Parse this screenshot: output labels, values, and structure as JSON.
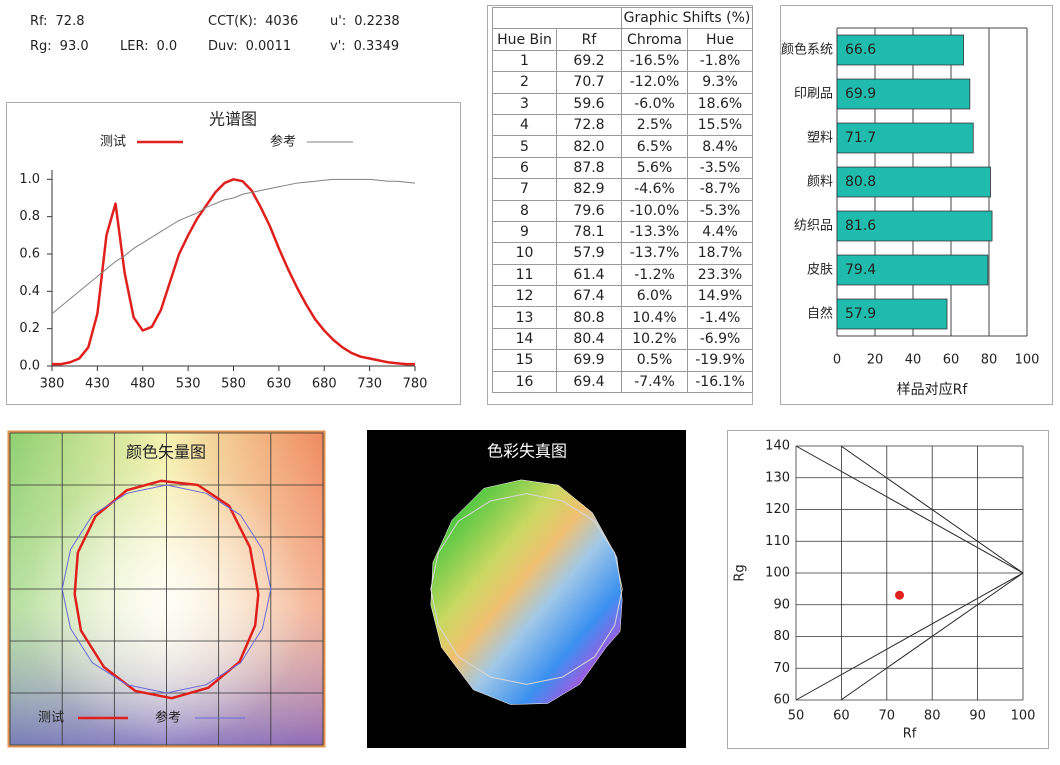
{
  "metrics": [
    {
      "label": "Rf:",
      "value": "72.8"
    },
    {
      "label": "Rg:",
      "value": "93.0"
    },
    {
      "label": "LER:",
      "value": "0.0"
    },
    {
      "label": "CCT(K):",
      "value": "4036"
    },
    {
      "label": "Duv:",
      "value": "0.0011"
    },
    {
      "label": "u':",
      "value": "0.2238"
    },
    {
      "label": "v':",
      "value": "0.3349"
    }
  ],
  "table": {
    "group_header": "Graphic Shifts (%)",
    "columns": [
      "Hue Bin",
      "Rf",
      "Chroma",
      "Hue"
    ],
    "rows": [
      [
        "1",
        "69.2",
        "-16.5%",
        "-1.8%"
      ],
      [
        "2",
        "70.7",
        "-12.0%",
        "9.3%"
      ],
      [
        "3",
        "59.6",
        "-6.0%",
        "18.6%"
      ],
      [
        "4",
        "72.8",
        "2.5%",
        "15.5%"
      ],
      [
        "5",
        "82.0",
        "6.5%",
        "8.4%"
      ],
      [
        "6",
        "87.8",
        "5.6%",
        "-3.5%"
      ],
      [
        "7",
        "82.9",
        "-4.6%",
        "-8.7%"
      ],
      [
        "8",
        "79.6",
        "-10.0%",
        "-5.3%"
      ],
      [
        "9",
        "78.1",
        "-13.3%",
        "4.4%"
      ],
      [
        "10",
        "57.9",
        "-13.7%",
        "18.7%"
      ],
      [
        "11",
        "61.4",
        "-1.2%",
        "23.3%"
      ],
      [
        "12",
        "67.4",
        "6.0%",
        "14.9%"
      ],
      [
        "13",
        "80.8",
        "10.4%",
        "-1.4%"
      ],
      [
        "14",
        "80.4",
        "10.2%",
        "-6.9%"
      ],
      [
        "15",
        "69.9",
        "0.5%",
        "-19.9%"
      ],
      [
        "16",
        "69.4",
        "-7.4%",
        "-16.1%"
      ]
    ]
  },
  "chart_data": [
    {
      "type": "line",
      "title": "光谱图",
      "x": [
        380,
        390,
        400,
        410,
        420,
        430,
        440,
        450,
        460,
        470,
        480,
        490,
        500,
        510,
        520,
        530,
        540,
        550,
        560,
        570,
        580,
        590,
        600,
        610,
        620,
        630,
        640,
        650,
        660,
        670,
        680,
        690,
        700,
        710,
        720,
        730,
        740,
        750,
        760,
        770,
        780
      ],
      "series": [
        {
          "name": "测试",
          "color": "#e0201c",
          "values": [
            0.01,
            0.01,
            0.02,
            0.04,
            0.1,
            0.28,
            0.7,
            0.87,
            0.5,
            0.26,
            0.19,
            0.21,
            0.3,
            0.45,
            0.6,
            0.7,
            0.79,
            0.86,
            0.93,
            0.98,
            1.0,
            0.99,
            0.94,
            0.85,
            0.75,
            0.63,
            0.52,
            0.42,
            0.33,
            0.25,
            0.19,
            0.14,
            0.1,
            0.07,
            0.05,
            0.04,
            0.03,
            0.02,
            0.015,
            0.01,
            0.01
          ]
        },
        {
          "name": "参考",
          "color": "#808080",
          "values": [
            0.28,
            0.32,
            0.36,
            0.4,
            0.44,
            0.48,
            0.52,
            0.56,
            0.59,
            0.63,
            0.66,
            0.69,
            0.72,
            0.75,
            0.78,
            0.8,
            0.82,
            0.85,
            0.87,
            0.89,
            0.9,
            0.92,
            0.93,
            0.94,
            0.95,
            0.96,
            0.97,
            0.98,
            0.985,
            0.99,
            0.995,
            1.0,
            1.0,
            1.0,
            1.0,
            1.0,
            0.995,
            0.99,
            0.99,
            0.985,
            0.98
          ]
        }
      ],
      "xlim": [
        380,
        780
      ],
      "xticks": [
        380,
        430,
        480,
        530,
        580,
        630,
        680,
        730,
        780
      ],
      "ylim": [
        0,
        1.05
      ],
      "yticks": [
        {
          "value": 0,
          "label": "0.0"
        },
        {
          "value": 0.2,
          "label": "0.2"
        },
        {
          "value": 0.4,
          "label": "0.4"
        },
        {
          "value": 0.6,
          "label": "0.6"
        },
        {
          "value": 0.8,
          "label": "0.8"
        },
        {
          "value": 1,
          "label": "1.0"
        }
      ],
      "legend": "top"
    },
    {
      "type": "bar",
      "orientation": "horizontal",
      "x_label": "样品对应Rf",
      "categories": [
        "颜色系统",
        "印刷品",
        "塑料",
        "颜料",
        "纺织品",
        "皮肤",
        "自然"
      ],
      "values": [
        66.6,
        69.9,
        71.7,
        80.8,
        81.6,
        79.4,
        57.9
      ],
      "color": "#1fbcae",
      "xlim": [
        0,
        100
      ],
      "xticks": [
        0,
        20,
        40,
        60,
        80,
        100
      ],
      "grid": true
    },
    {
      "type": "polygon",
      "title": "颜色矢量图",
      "series": [
        {
          "name": "测试",
          "color": "#e0201c",
          "x": [
            0.88,
            0.8,
            0.6,
            0.3,
            -0.05,
            -0.38,
            -0.68,
            -0.85,
            -0.88,
            -0.82,
            -0.6,
            -0.3,
            0.05,
            0.4,
            0.7,
            0.85
          ],
          "values": [
            -0.05,
            0.4,
            0.8,
            1.0,
            1.04,
            0.95,
            0.7,
            0.35,
            -0.05,
            -0.4,
            -0.75,
            -0.98,
            -1.05,
            -0.95,
            -0.7,
            -0.35
          ]
        },
        {
          "name": "参考",
          "color": "#6a6ad8",
          "x": [
            1,
            0.92,
            0.71,
            0.38,
            0,
            -0.38,
            -0.71,
            -0.92,
            -1,
            -0.92,
            -0.71,
            -0.38,
            0,
            0.38,
            0.71,
            0.92
          ],
          "values": [
            0,
            0.38,
            0.71,
            0.92,
            1,
            0.92,
            0.71,
            0.38,
            0,
            -0.38,
            -0.71,
            -0.92,
            -1,
            -0.92,
            -0.71,
            -0.38
          ]
        }
      ],
      "xlim": [
        -1.5,
        1.5
      ],
      "ylim": [
        -1.5,
        1.5
      ],
      "xticks": [
        -1.5,
        -1,
        -0.5,
        0,
        0.5,
        1,
        1.5
      ],
      "yticks": [
        -1.5,
        -1,
        -0.5,
        0,
        0.5,
        1,
        1.5
      ],
      "grid": true,
      "legend": "lower left"
    },
    {
      "type": "polygon",
      "title": "色彩失真图",
      "filled": true,
      "series": [
        {
          "color": "#ffffff",
          "x": [
            0.9,
            0.85,
            0.62,
            0.3,
            -0.05,
            -0.4,
            -0.7,
            -0.88,
            -0.9,
            -0.8,
            -0.5,
            -0.15,
            0.2,
            0.5,
            0.75,
            0.88
          ],
          "values": [
            -0.1,
            0.3,
            0.72,
            0.98,
            1.03,
            0.95,
            0.65,
            0.25,
            -0.15,
            -0.55,
            -0.95,
            -1.09,
            -1.08,
            -0.9,
            -0.55,
            -0.4
          ]
        },
        {
          "color": "#d8d8d8",
          "x": [
            0.9,
            0.83,
            0.64,
            0.34,
            0,
            -0.34,
            -0.64,
            -0.83,
            -0.9,
            -0.83,
            -0.64,
            -0.34,
            0,
            0.34,
            0.64,
            0.83
          ],
          "values": [
            0,
            0.34,
            0.64,
            0.83,
            0.9,
            0.83,
            0.64,
            0.34,
            0,
            -0.34,
            -0.64,
            -0.83,
            -0.9,
            -0.83,
            -0.64,
            -0.34
          ]
        }
      ],
      "xlim": [
        -1.5,
        1.5
      ],
      "ylim": [
        -1.5,
        1.5
      ]
    },
    {
      "type": "scatter",
      "x_label": "Rf",
      "y_label": "Rg",
      "series": [
        {
          "color": "#e0201c",
          "x": [
            72.8
          ],
          "values": [
            93.0
          ]
        }
      ],
      "xlim": [
        50,
        100
      ],
      "xticks": [
        50,
        60,
        70,
        80,
        90,
        100
      ],
      "ylim": [
        60,
        140
      ],
      "yticks": [
        60,
        70,
        80,
        90,
        100,
        110,
        120,
        130,
        140
      ],
      "grid": true
    }
  ]
}
